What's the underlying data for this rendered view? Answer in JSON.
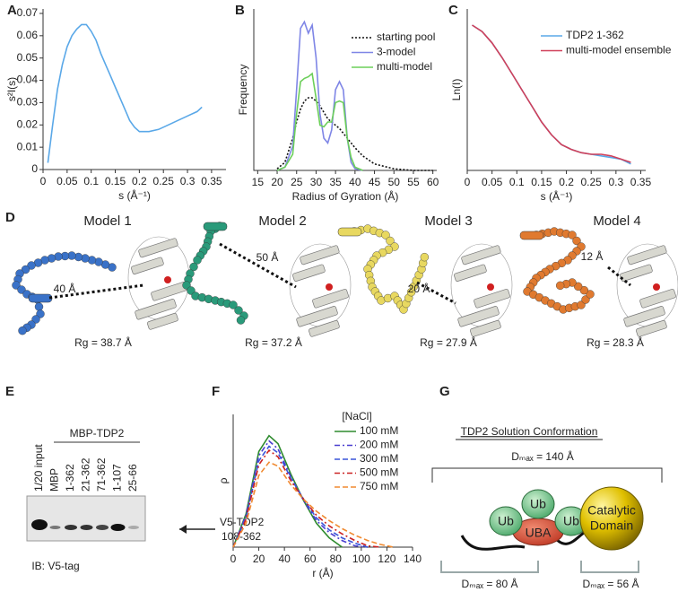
{
  "chart_data": [
    {
      "letter": "A",
      "type": "line",
      "xlabel": "s (Å⁻¹)",
      "ylabel": "s²I(s)",
      "xlim": [
        0,
        0.38
      ],
      "ylim": [
        0,
        0.072
      ],
      "xticks": [
        0,
        0.05,
        0.1,
        0.15,
        0.2,
        0.25,
        0.3,
        0.35
      ],
      "yticks": [
        0,
        0.01,
        0.02,
        0.03,
        0.04,
        0.05,
        0.06,
        0.07
      ],
      "x": [
        0.01,
        0.02,
        0.03,
        0.04,
        0.05,
        0.06,
        0.07,
        0.08,
        0.09,
        0.1,
        0.11,
        0.12,
        0.13,
        0.14,
        0.15,
        0.16,
        0.17,
        0.18,
        0.19,
        0.2,
        0.22,
        0.24,
        0.26,
        0.28,
        0.3,
        0.32,
        0.33
      ],
      "series": [
        {
          "color": "#5aa8e8",
          "dash": "solid",
          "values": [
            0.003,
            0.02,
            0.036,
            0.047,
            0.055,
            0.06,
            0.063,
            0.065,
            0.065,
            0.062,
            0.058,
            0.052,
            0.047,
            0.042,
            0.037,
            0.032,
            0.027,
            0.022,
            0.019,
            0.017,
            0.017,
            0.018,
            0.02,
            0.022,
            0.024,
            0.026,
            0.028
          ]
        }
      ]
    },
    {
      "letter": "B",
      "type": "line",
      "xlabel": "Radius of Gyration (Å)",
      "ylabel": "Frequency",
      "xlim": [
        14,
        61
      ],
      "ylim": [
        0,
        1
      ],
      "xticks": [
        15,
        20,
        25,
        30,
        35,
        40,
        45,
        50,
        55,
        60
      ],
      "legend": "upper right",
      "x": [
        20,
        22,
        24,
        25,
        26,
        27,
        28,
        29,
        30,
        31,
        32,
        33,
        34,
        35,
        36,
        37,
        38,
        39,
        40,
        42,
        45,
        50,
        55,
        60
      ],
      "series": [
        {
          "name": "starting pool",
          "color": "#111111",
          "dash": "dotted",
          "values": [
            0.01,
            0.05,
            0.2,
            0.3,
            0.38,
            0.43,
            0.45,
            0.45,
            0.43,
            0.4,
            0.36,
            0.32,
            0.3,
            0.28,
            0.26,
            0.23,
            0.2,
            0.17,
            0.14,
            0.09,
            0.04,
            0.01,
            0,
            0
          ]
        },
        {
          "name": "3-model",
          "color": "#7f86e6",
          "dash": "solid",
          "values": [
            0,
            0.02,
            0.15,
            0.5,
            0.88,
            0.92,
            0.85,
            0.9,
            0.7,
            0.35,
            0.2,
            0.17,
            0.25,
            0.5,
            0.55,
            0.5,
            0.2,
            0.05,
            0.01,
            0,
            null,
            null,
            null,
            null
          ]
        },
        {
          "name": "multi-model",
          "color": "#6ccf5a",
          "dash": "solid",
          "values": [
            0,
            0.02,
            0.1,
            0.35,
            0.55,
            0.57,
            0.58,
            0.6,
            0.45,
            0.28,
            0.27,
            0.3,
            0.3,
            0.42,
            0.43,
            0.42,
            0.2,
            0.08,
            0.02,
            0,
            null,
            null,
            null,
            null
          ]
        }
      ]
    },
    {
      "letter": "C",
      "type": "line",
      "xlabel": "s (Å⁻¹)",
      "ylabel": "Ln(I)",
      "xlim": [
        0,
        0.36
      ],
      "ylim": [
        0,
        1
      ],
      "xticks": [
        0,
        0.05,
        0.1,
        0.15,
        0.2,
        0.25,
        0.3,
        0.35
      ],
      "legend": "upper right",
      "x": [
        0.01,
        0.03,
        0.05,
        0.07,
        0.09,
        0.11,
        0.13,
        0.15,
        0.17,
        0.19,
        0.21,
        0.23,
        0.25,
        0.27,
        0.29,
        0.31,
        0.33
      ],
      "series": [
        {
          "name": "TDP2 1-362",
          "color": "#5aa8e8",
          "dash": "solid",
          "values": [
            0.9,
            0.86,
            0.79,
            0.7,
            0.6,
            0.5,
            0.4,
            0.3,
            0.22,
            0.16,
            0.13,
            0.11,
            0.1,
            0.09,
            0.08,
            0.07,
            0.04
          ]
        },
        {
          "name": "multi-model ensemble",
          "color": "#d0405a",
          "dash": "solid",
          "values": [
            0.9,
            0.86,
            0.79,
            0.7,
            0.6,
            0.5,
            0.4,
            0.3,
            0.22,
            0.16,
            0.13,
            0.11,
            0.1,
            0.1,
            0.09,
            0.07,
            0.05
          ]
        }
      ]
    },
    {
      "letter": "F",
      "type": "line",
      "xlabel": "r (Å)",
      "ylabel": "ρ",
      "xlim": [
        0,
        140
      ],
      "ylim": [
        0,
        1
      ],
      "xticks": [
        0,
        20,
        40,
        60,
        80,
        100,
        120,
        140
      ],
      "legend": "upper right",
      "legend_title": "[NaCl]",
      "x": [
        0,
        10,
        20,
        28,
        35,
        45,
        55,
        65,
        75,
        85,
        95,
        105,
        115,
        125
      ],
      "series": [
        {
          "name": "100 mM",
          "color": "#2e8b2e",
          "dash": "solid",
          "values": [
            0,
            0.25,
            0.72,
            0.84,
            0.78,
            0.55,
            0.35,
            0.18,
            0.07,
            0,
            null,
            null,
            null,
            null
          ]
        },
        {
          "name": "200 mM",
          "color": "#4a3fd0",
          "dash": "dashdot",
          "values": [
            0,
            0.24,
            0.69,
            0.8,
            0.74,
            0.53,
            0.35,
            0.2,
            0.11,
            0.05,
            0.01,
            0,
            null,
            null
          ]
        },
        {
          "name": "300 mM",
          "color": "#3a55d8",
          "dash": "dash",
          "values": [
            0,
            0.22,
            0.65,
            0.76,
            0.71,
            0.52,
            0.36,
            0.22,
            0.13,
            0.07,
            0.03,
            0,
            null,
            null
          ]
        },
        {
          "name": "500 mM",
          "color": "#cc2222",
          "dash": "dashdot",
          "values": [
            0,
            0.21,
            0.62,
            0.73,
            0.68,
            0.5,
            0.36,
            0.24,
            0.16,
            0.1,
            0.05,
            0.01,
            0,
            null
          ]
        },
        {
          "name": "750 mM",
          "color": "#f08a30",
          "dash": "dash",
          "values": [
            0,
            0.18,
            0.54,
            0.64,
            0.61,
            0.47,
            0.36,
            0.27,
            0.2,
            0.14,
            0.09,
            0.05,
            0.02,
            0
          ]
        }
      ]
    }
  ],
  "models": {
    "letter": "D",
    "items": [
      {
        "title": "Model 1",
        "distance": "40 Å",
        "rg": "Rg = 38.7 Å"
      },
      {
        "title": "Model 2",
        "distance": "50 Å",
        "rg": "Rg = 37.2 Å"
      },
      {
        "title": "Model 3",
        "distance": "20 Å",
        "rg": "Rg = 27.9 Å"
      },
      {
        "title": "Model 4",
        "distance": "12 Å",
        "rg": "Rg = 28.3 Å"
      }
    ]
  },
  "blot": {
    "letter": "E",
    "lanes": [
      "1/20 input",
      "MBP",
      "1-362",
      "21-362",
      "71-362",
      "1-107",
      "25-66"
    ],
    "group": "MBP-TDP2",
    "target": [
      "V5-TDP2",
      "108-362"
    ],
    "antibody": "IB: V5-tag"
  },
  "diagram": {
    "letter": "G",
    "title": "TDP2 Solution Conformation",
    "dmax_total": "Dₘₐₓ = 140 Å",
    "domains": [
      "Ub",
      "Ub",
      "Ub",
      "UBA"
    ],
    "catalytic": [
      "Catalytic",
      "Domain"
    ],
    "dmax_left": "Dₘₐₓ = 80 Å",
    "dmax_right": "Dₘₐₓ = 56 Å"
  }
}
